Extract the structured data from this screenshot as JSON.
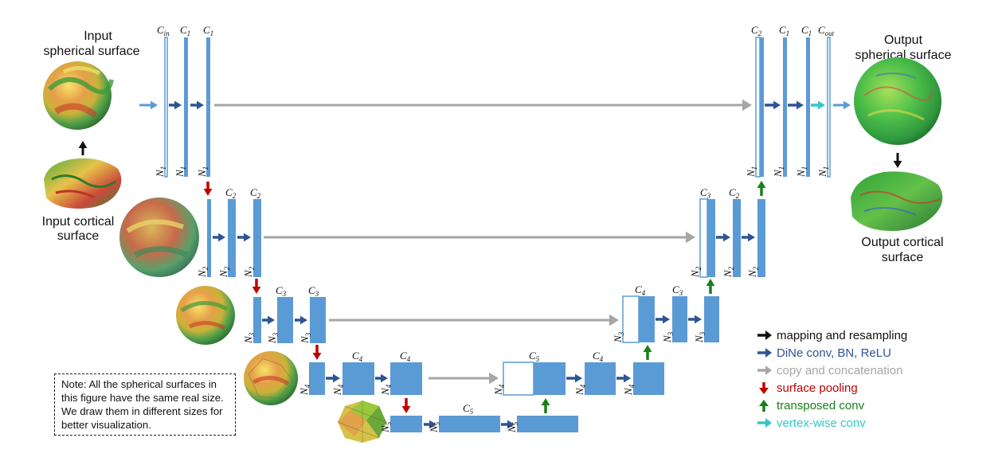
{
  "captions": {
    "input_sphere": [
      "Input",
      "spherical surface"
    ],
    "input_cortex": [
      "Input cortical",
      "surface"
    ],
    "output_sphere": [
      "Output",
      "spherical surface"
    ],
    "output_cortex": [
      "Output cortical",
      "surface"
    ]
  },
  "note": "Note: All the spherical surfaces in this figure have the same real size. We draw them in different sizes for better visualization.",
  "legend": [
    {
      "name": "legend-mapping",
      "text": "mapping and resampling",
      "color": "#111111"
    },
    {
      "name": "legend-dine-conv",
      "text": "DiNe conv, BN, ReLU",
      "color": "#2e5494"
    },
    {
      "name": "legend-copy",
      "text": "copy and concatenation",
      "color": "#a6a6a6"
    },
    {
      "name": "legend-pooling",
      "text": "surface pooling",
      "color": "#c00000"
    },
    {
      "name": "legend-transposed",
      "text": "transposed conv",
      "color": "#17801a"
    },
    {
      "name": "legend-vertex-conv",
      "text": "vertex-wise conv",
      "color": "#33c6c6"
    }
  ],
  "labels": {
    "C_in": [
      "C",
      "in"
    ],
    "C1": [
      "C",
      "1"
    ],
    "C2": [
      "C",
      "2"
    ],
    "C3": [
      "C",
      "3"
    ],
    "C4": [
      "C",
      "4"
    ],
    "C5": [
      "C",
      "5"
    ],
    "C_out": [
      "C",
      "out"
    ],
    "N1": [
      "N",
      "1"
    ],
    "N2": [
      "N",
      "2"
    ],
    "N3": [
      "N",
      "3"
    ],
    "N4": [
      "N",
      "4"
    ],
    "N5": [
      "N",
      "5"
    ]
  },
  "colors": {
    "block": "#5b9bd5",
    "block_edge": "#3f7fc1",
    "conv_arrow": "#2e5494",
    "copy_arrow": "#a6a6a6",
    "pool_arrow": "#c00000",
    "up_arrow": "#17801a",
    "vertex_arrow": "#33c6c6",
    "input_arrow": "#5b9bd5",
    "map_arrow": "#111111"
  }
}
